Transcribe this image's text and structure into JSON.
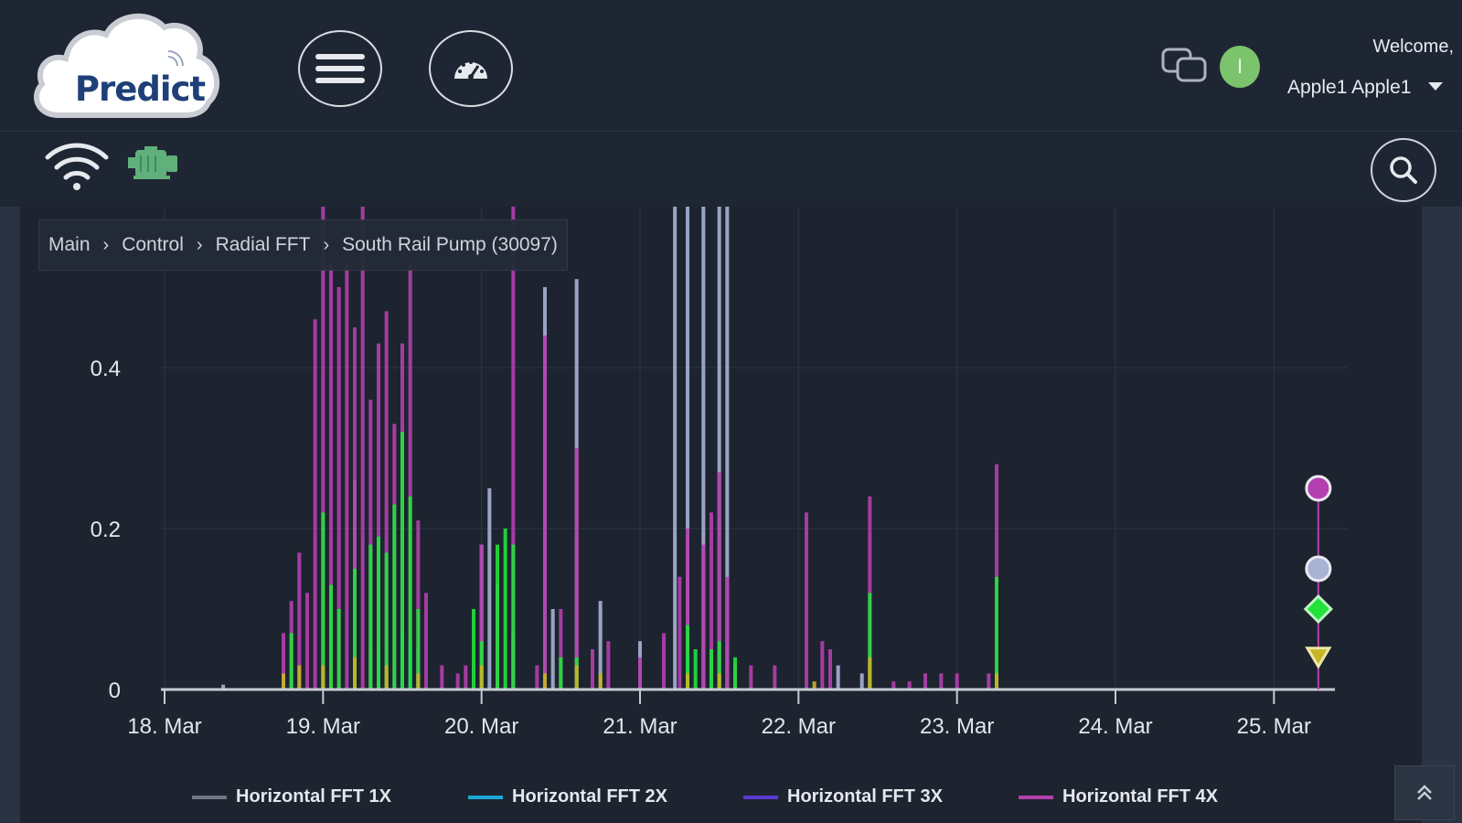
{
  "header": {
    "logo_text": "Predict",
    "welcome": "Welcome,",
    "user_name": "Apple1 Apple1",
    "avatar_initial": "I"
  },
  "breadcrumb": [
    {
      "label": "Main"
    },
    {
      "label": "Control"
    },
    {
      "label": "Radial FFT"
    },
    {
      "label": "South Rail Pump (30097)"
    }
  ],
  "colors": {
    "background": "#1d2430",
    "series_1x": "#a7b3d4",
    "series_2x": "#1ba7d6",
    "series_3x": "#5a3bd1",
    "series_4x": "#b43fae",
    "green": "#22e23a",
    "yellow": "#c7b526",
    "avatar": "#7cc36e"
  },
  "chart_data": {
    "type": "bar",
    "ylim": [
      0,
      0.6
    ],
    "y_ticks": [
      "0",
      "0.2",
      "0.4"
    ],
    "x_ticks": [
      "18. Mar",
      "19. Mar",
      "20. Mar",
      "21. Mar",
      "22. Mar",
      "23. Mar",
      "24. Mar",
      "25. Mar"
    ],
    "series": [
      {
        "name": "Horizontal FFT 1X",
        "color": "#a7b3d4",
        "points": [
          [
            18.37,
            0.006
          ],
          [
            19.2,
            0.26
          ],
          [
            19.3,
            0.18
          ],
          [
            19.6,
            0.05
          ],
          [
            20.0,
            0.18
          ],
          [
            20.05,
            0.25
          ],
          [
            20.2,
            0.07
          ],
          [
            20.4,
            0.5
          ],
          [
            20.45,
            0.1
          ],
          [
            20.6,
            0.51
          ],
          [
            20.75,
            0.11
          ],
          [
            21.22,
            0.6
          ],
          [
            21.3,
            0.6
          ],
          [
            21.4,
            0.6
          ],
          [
            21.5,
            0.6
          ],
          [
            21.55,
            0.6
          ],
          [
            21.0,
            0.06
          ],
          [
            22.25,
            0.03
          ],
          [
            22.4,
            0.02
          ]
        ]
      },
      {
        "name": "Horizontal FFT 2X",
        "color": "#1ba7d6",
        "points": [
          [
            19.35,
            0.05
          ],
          [
            19.5,
            0.07
          ],
          [
            19.55,
            0.06
          ],
          [
            21.3,
            0.04
          ]
        ]
      },
      {
        "name": "Horizontal FFT 3X",
        "color": "#5a3bd1",
        "points": [
          [
            19.4,
            0.02
          ],
          [
            19.6,
            0.02
          ],
          [
            21.45,
            0.02
          ]
        ]
      },
      {
        "name": "Horizontal FFT 4X",
        "color": "#b43fae",
        "points": [
          [
            18.75,
            0.07
          ],
          [
            18.8,
            0.11
          ],
          [
            18.85,
            0.17
          ],
          [
            18.9,
            0.12
          ],
          [
            18.95,
            0.46
          ],
          [
            19.0,
            0.6
          ],
          [
            19.05,
            0.53
          ],
          [
            19.1,
            0.5
          ],
          [
            19.15,
            0.53
          ],
          [
            19.2,
            0.45
          ],
          [
            19.25,
            0.6
          ],
          [
            19.3,
            0.36
          ],
          [
            19.35,
            0.43
          ],
          [
            19.4,
            0.47
          ],
          [
            19.45,
            0.33
          ],
          [
            19.5,
            0.43
          ],
          [
            19.55,
            0.53
          ],
          [
            19.6,
            0.21
          ],
          [
            19.65,
            0.12
          ],
          [
            19.75,
            0.03
          ],
          [
            19.85,
            0.02
          ],
          [
            19.9,
            0.03
          ],
          [
            20.0,
            0.18
          ],
          [
            20.1,
            0.13
          ],
          [
            20.2,
            0.6
          ],
          [
            20.35,
            0.03
          ],
          [
            20.4,
            0.44
          ],
          [
            20.5,
            0.1
          ],
          [
            20.6,
            0.3
          ],
          [
            20.7,
            0.05
          ],
          [
            20.8,
            0.06
          ],
          [
            21.0,
            0.04
          ],
          [
            21.15,
            0.07
          ],
          [
            21.25,
            0.14
          ],
          [
            21.3,
            0.2
          ],
          [
            21.4,
            0.18
          ],
          [
            21.45,
            0.22
          ],
          [
            21.5,
            0.27
          ],
          [
            21.55,
            0.14
          ],
          [
            21.6,
            0.03
          ],
          [
            21.7,
            0.03
          ],
          [
            21.85,
            0.03
          ],
          [
            22.05,
            0.22
          ],
          [
            22.15,
            0.06
          ],
          [
            22.2,
            0.05
          ],
          [
            22.45,
            0.24
          ],
          [
            22.6,
            0.01
          ],
          [
            22.7,
            0.01
          ],
          [
            22.8,
            0.02
          ],
          [
            22.9,
            0.02
          ],
          [
            23.0,
            0.02
          ],
          [
            23.2,
            0.02
          ],
          [
            23.25,
            0.28
          ]
        ]
      },
      {
        "name": "",
        "color": "#22e23a",
        "points": [
          [
            18.8,
            0.07
          ],
          [
            19.0,
            0.22
          ],
          [
            19.05,
            0.13
          ],
          [
            19.1,
            0.1
          ],
          [
            19.2,
            0.15
          ],
          [
            19.3,
            0.18
          ],
          [
            19.35,
            0.19
          ],
          [
            19.4,
            0.17
          ],
          [
            19.45,
            0.23
          ],
          [
            19.5,
            0.32
          ],
          [
            19.55,
            0.24
          ],
          [
            19.6,
            0.1
          ],
          [
            19.95,
            0.1
          ],
          [
            20.0,
            0.06
          ],
          [
            20.1,
            0.18
          ],
          [
            20.15,
            0.2
          ],
          [
            20.2,
            0.18
          ],
          [
            20.5,
            0.04
          ],
          [
            20.6,
            0.04
          ],
          [
            21.3,
            0.08
          ],
          [
            21.35,
            0.05
          ],
          [
            21.45,
            0.05
          ],
          [
            21.5,
            0.06
          ],
          [
            21.6,
            0.04
          ],
          [
            22.45,
            0.12
          ],
          [
            23.25,
            0.14
          ]
        ]
      },
      {
        "name": "",
        "color": "#c7b526",
        "points": [
          [
            18.75,
            0.02
          ],
          [
            18.85,
            0.03
          ],
          [
            19.0,
            0.03
          ],
          [
            19.2,
            0.04
          ],
          [
            19.4,
            0.03
          ],
          [
            19.6,
            0.02
          ],
          [
            20.0,
            0.03
          ],
          [
            20.4,
            0.02
          ],
          [
            20.6,
            0.03
          ],
          [
            20.75,
            0.02
          ],
          [
            21.3,
            0.02
          ],
          [
            21.5,
            0.02
          ],
          [
            22.1,
            0.01
          ],
          [
            22.45,
            0.04
          ],
          [
            23.25,
            0.02
          ]
        ]
      }
    ],
    "latest_markers": [
      {
        "color": "#b43fae",
        "shape": "circle",
        "value": 0.25
      },
      {
        "color": "#a7b3d4",
        "shape": "circle",
        "value": 0.15
      },
      {
        "color": "#22e23a",
        "shape": "diamond",
        "value": 0.1
      },
      {
        "color": "#c7b526",
        "shape": "triangle-down",
        "value": 0.04
      }
    ]
  },
  "legend": [
    {
      "label": "Horizontal FFT 1X",
      "color": "#6f7785"
    },
    {
      "label": "Horizontal FFT 2X",
      "color": "#1ba7d6"
    },
    {
      "label": "Horizontal FFT 3X",
      "color": "#5a3bd1"
    },
    {
      "label": "Horizontal FFT 4X",
      "color": "#b43fae"
    }
  ]
}
